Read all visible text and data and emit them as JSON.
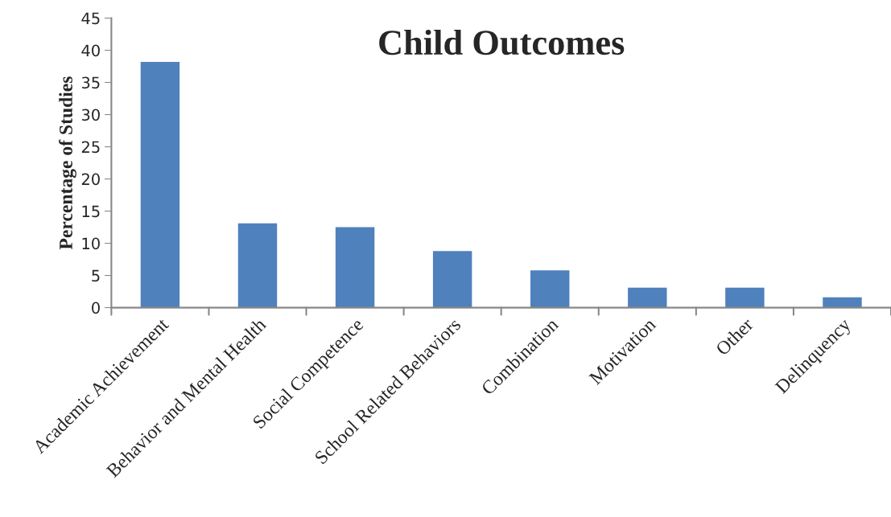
{
  "chart_data": {
    "type": "bar",
    "title": "Child Outcomes",
    "ylabel": "Percentage of Studies",
    "categories": [
      "Academic Achievement",
      "Behavior and Mental Health",
      "Social Competence",
      "School Related Behaviors",
      "Combination",
      "Motivation",
      "Other",
      "Delinquency"
    ],
    "values": [
      38.2,
      13.1,
      12.5,
      8.8,
      5.8,
      3.1,
      3.1,
      1.6
    ],
    "color": "#4f81bd",
    "ylim": [
      0,
      45
    ],
    "yticks": [
      0,
      5,
      10,
      15,
      20,
      25,
      30,
      35,
      40,
      45
    ],
    "grid": false
  }
}
